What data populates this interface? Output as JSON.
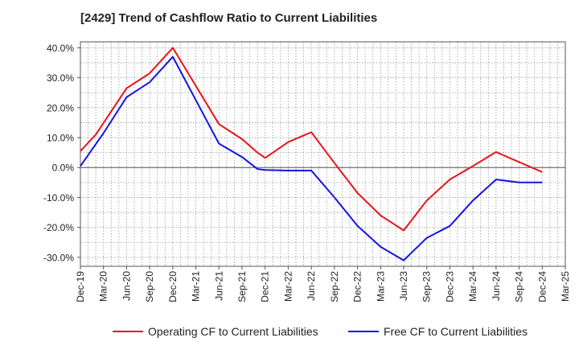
{
  "chart_data": {
    "type": "line",
    "title": "[2429]  Trend of Cashflow Ratio to Current Liabilities",
    "xlabel": "",
    "ylabel": "",
    "ylim": [
      -33,
      42
    ],
    "yticks": [
      40,
      30,
      20,
      10,
      0,
      -10,
      -20,
      -30
    ],
    "ytick_labels": [
      "40.0%",
      "30.0%",
      "20.0%",
      "10.0%",
      "0.0%",
      "-10.0%",
      "-20.0%",
      "-30.0%"
    ],
    "categories": [
      "Dec-19",
      "Mar-20",
      "Jun-20",
      "Sep-20",
      "Dec-20",
      "Mar-21",
      "Jun-21",
      "Sep-21",
      "Dec-21",
      "Mar-22",
      "Jun-22",
      "Sep-22",
      "Dec-22",
      "Mar-23",
      "Jun-23",
      "Sep-23",
      "Dec-23",
      "Mar-24",
      "Jun-24",
      "Sep-24",
      "Dec-24",
      "Mar-25"
    ],
    "x_label_step_months": 3,
    "grid": true,
    "legend_position": "bottom",
    "series": [
      {
        "name": "Operating CF to Current Liabilities",
        "color": "#e8141a",
        "points": [
          [
            "Dec-19",
            5.5
          ],
          [
            "Feb-20",
            11.0
          ],
          [
            "Jun-20",
            26.5
          ],
          [
            "Sep-20",
            31.5
          ],
          [
            "Dec-20",
            40.0
          ],
          [
            "Jun-21",
            14.5
          ],
          [
            "Sep-21",
            9.5
          ],
          [
            "Nov-21",
            5.0
          ],
          [
            "Dec-21",
            3.2
          ],
          [
            "Mar-22",
            8.5
          ],
          [
            "Jun-22",
            11.8
          ],
          [
            "Sep-22",
            1.5
          ],
          [
            "Dec-22",
            -8.5
          ],
          [
            "Mar-23",
            -16.0
          ],
          [
            "Jun-23",
            -21.0
          ],
          [
            "Sep-23",
            -11.0
          ],
          [
            "Dec-23",
            -4.0
          ],
          [
            "Mar-24",
            0.5
          ],
          [
            "Jun-24",
            5.2
          ],
          [
            "Sep-24",
            1.8
          ],
          [
            "Dec-24",
            -1.5
          ]
        ]
      },
      {
        "name": "Free CF to Current Liabilities",
        "color": "#1414e6",
        "points": [
          [
            "Dec-19",
            0.5
          ],
          [
            "Mar-20",
            11.5
          ],
          [
            "Jun-20",
            23.5
          ],
          [
            "Sep-20",
            28.5
          ],
          [
            "Dec-20",
            37.0
          ],
          [
            "Jun-21",
            8.0
          ],
          [
            "Sep-21",
            3.5
          ],
          [
            "Nov-21",
            -0.5
          ],
          [
            "Dec-21",
            -0.8
          ],
          [
            "Mar-22",
            -1.0
          ],
          [
            "Jun-22",
            -1.0
          ],
          [
            "Sep-22",
            -10.0
          ],
          [
            "Dec-22",
            -19.5
          ],
          [
            "Mar-23",
            -26.5
          ],
          [
            "Jun-23",
            -31.0
          ],
          [
            "Sep-23",
            -23.5
          ],
          [
            "Dec-23",
            -19.5
          ],
          [
            "Mar-24",
            -11.0
          ],
          [
            "Jun-24",
            -4.0
          ],
          [
            "Sep-24",
            -5.0
          ],
          [
            "Dec-24",
            -5.0
          ]
        ]
      }
    ]
  }
}
